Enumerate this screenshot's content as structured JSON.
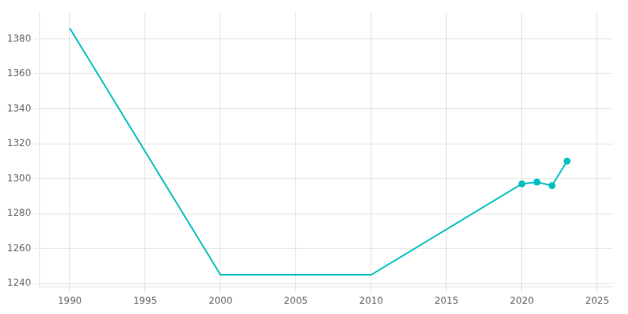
{
  "chart_data": {
    "type": "line",
    "series": [
      {
        "x": [
          1990,
          2000,
          2010,
          2020,
          2021,
          2022,
          2023
        ],
        "values": [
          1386,
          1245,
          1245,
          1297,
          1298,
          1296,
          1310
        ],
        "color": "#00BFBF",
        "type": "line"
      },
      {
        "x": [
          2020,
          2021,
          2022,
          2023
        ],
        "values": [
          1297,
          1298,
          1296,
          1310
        ],
        "color": "#00BFBF",
        "type": "scatter",
        "marker": "circle"
      }
    ],
    "xlim": [
      1988,
      2026
    ],
    "xticks": [
      1990,
      1995,
      2000,
      2005,
      2010,
      2015,
      2020,
      2025
    ],
    "ylim": [
      1238,
      1395
    ],
    "yticks": [
      1240,
      1260,
      1280,
      1300,
      1320,
      1340,
      1360,
      1380
    ],
    "grid": true
  }
}
